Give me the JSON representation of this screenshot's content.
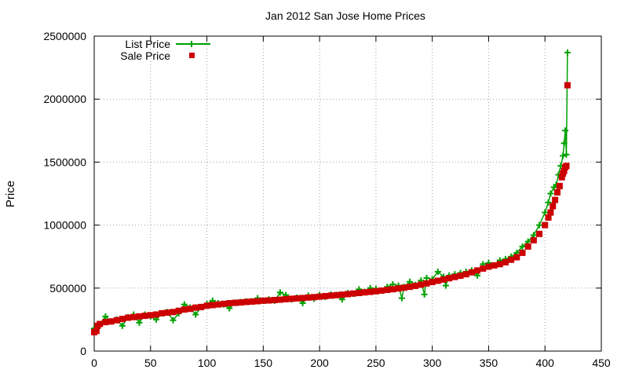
{
  "chart_data": {
    "type": "scatter",
    "title": "Jan 2012 San Jose Home Prices",
    "xlabel": "",
    "ylabel": "Price",
    "xlim": [
      0,
      450
    ],
    "ylim": [
      0,
      2500000
    ],
    "x_ticks": [
      0,
      50,
      100,
      150,
      200,
      250,
      300,
      350,
      400,
      450
    ],
    "y_ticks": [
      0,
      500000,
      1000000,
      1500000,
      2000000,
      2500000
    ],
    "grid": true,
    "legend_position": "top-left",
    "series": [
      {
        "name": "List Price",
        "style": "line-with-plus-markers",
        "color": "#00a000",
        "points": [
          [
            0,
            180000
          ],
          [
            2,
            195000
          ],
          [
            5,
            215000
          ],
          [
            10,
            275000
          ],
          [
            15,
            235000
          ],
          [
            20,
            250000
          ],
          [
            25,
            200000
          ],
          [
            30,
            270000
          ],
          [
            35,
            290000
          ],
          [
            40,
            225000
          ],
          [
            45,
            290000
          ],
          [
            50,
            275000
          ],
          [
            55,
            250000
          ],
          [
            60,
            300000
          ],
          [
            65,
            310000
          ],
          [
            70,
            245000
          ],
          [
            75,
            300000
          ],
          [
            80,
            370000
          ],
          [
            85,
            345000
          ],
          [
            90,
            290000
          ],
          [
            95,
            350000
          ],
          [
            100,
            375000
          ],
          [
            105,
            400000
          ],
          [
            110,
            380000
          ],
          [
            115,
            370000
          ],
          [
            120,
            340000
          ],
          [
            125,
            385000
          ],
          [
            130,
            390000
          ],
          [
            135,
            395000
          ],
          [
            140,
            395000
          ],
          [
            145,
            420000
          ],
          [
            150,
            400000
          ],
          [
            155,
            410000
          ],
          [
            160,
            400000
          ],
          [
            165,
            465000
          ],
          [
            170,
            445000
          ],
          [
            175,
            410000
          ],
          [
            180,
            425000
          ],
          [
            185,
            380000
          ],
          [
            190,
            440000
          ],
          [
            195,
            415000
          ],
          [
            200,
            445000
          ],
          [
            205,
            430000
          ],
          [
            210,
            450000
          ],
          [
            215,
            445000
          ],
          [
            220,
            410000
          ],
          [
            225,
            460000
          ],
          [
            230,
            455000
          ],
          [
            235,
            490000
          ],
          [
            240,
            470000
          ],
          [
            245,
            500000
          ],
          [
            250,
            495000
          ],
          [
            255,
            480000
          ],
          [
            260,
            510000
          ],
          [
            265,
            530000
          ],
          [
            270,
            520000
          ],
          [
            273,
            420000
          ],
          [
            275,
            510000
          ],
          [
            280,
            550000
          ],
          [
            285,
            525000
          ],
          [
            290,
            560000
          ],
          [
            293,
            450000
          ],
          [
            295,
            580000
          ],
          [
            300,
            570000
          ],
          [
            305,
            630000
          ],
          [
            310,
            590000
          ],
          [
            312,
            520000
          ],
          [
            315,
            600000
          ],
          [
            320,
            610000
          ],
          [
            325,
            620000
          ],
          [
            330,
            630000
          ],
          [
            335,
            640000
          ],
          [
            340,
            600000
          ],
          [
            345,
            690000
          ],
          [
            350,
            700000
          ],
          [
            355,
            680000
          ],
          [
            360,
            720000
          ],
          [
            365,
            730000
          ],
          [
            370,
            750000
          ],
          [
            375,
            780000
          ],
          [
            380,
            830000
          ],
          [
            385,
            870000
          ],
          [
            390,
            920000
          ],
          [
            395,
            1000000
          ],
          [
            400,
            1100000
          ],
          [
            403,
            1180000
          ],
          [
            405,
            1250000
          ],
          [
            408,
            1300000
          ],
          [
            410,
            1320000
          ],
          [
            412,
            1400000
          ],
          [
            414,
            1470000
          ],
          [
            416,
            1550000
          ],
          [
            417,
            1650000
          ],
          [
            418,
            1750000
          ],
          [
            419,
            1560000
          ],
          [
            420,
            2370000
          ]
        ]
      },
      {
        "name": "Sale Price",
        "style": "square-markers",
        "color": "#cc0000",
        "points": [
          [
            0,
            150000
          ],
          [
            2,
            160000
          ],
          [
            3,
            200000
          ],
          [
            5,
            215000
          ],
          [
            10,
            230000
          ],
          [
            15,
            235000
          ],
          [
            20,
            245000
          ],
          [
            25,
            255000
          ],
          [
            30,
            265000
          ],
          [
            35,
            270000
          ],
          [
            40,
            275000
          ],
          [
            45,
            280000
          ],
          [
            50,
            285000
          ],
          [
            55,
            290000
          ],
          [
            60,
            300000
          ],
          [
            65,
            305000
          ],
          [
            70,
            310000
          ],
          [
            75,
            320000
          ],
          [
            80,
            330000
          ],
          [
            85,
            335000
          ],
          [
            90,
            345000
          ],
          [
            95,
            350000
          ],
          [
            100,
            360000
          ],
          [
            105,
            365000
          ],
          [
            110,
            370000
          ],
          [
            115,
            375000
          ],
          [
            120,
            380000
          ],
          [
            125,
            383000
          ],
          [
            130,
            386000
          ],
          [
            135,
            390000
          ],
          [
            140,
            393000
          ],
          [
            145,
            396000
          ],
          [
            150,
            400000
          ],
          [
            155,
            402000
          ],
          [
            160,
            405000
          ],
          [
            165,
            408000
          ],
          [
            170,
            412000
          ],
          [
            175,
            415000
          ],
          [
            180,
            418000
          ],
          [
            185,
            421000
          ],
          [
            190,
            425000
          ],
          [
            195,
            428000
          ],
          [
            200,
            432000
          ],
          [
            205,
            436000
          ],
          [
            210,
            440000
          ],
          [
            215,
            444000
          ],
          [
            220,
            448000
          ],
          [
            225,
            452000
          ],
          [
            230,
            457000
          ],
          [
            235,
            461000
          ],
          [
            240,
            466000
          ],
          [
            245,
            470000
          ],
          [
            250,
            475000
          ],
          [
            255,
            480000
          ],
          [
            260,
            486000
          ],
          [
            265,
            491000
          ],
          [
            270,
            497000
          ],
          [
            275,
            503000
          ],
          [
            280,
            510000
          ],
          [
            285,
            518000
          ],
          [
            290,
            527000
          ],
          [
            295,
            537000
          ],
          [
            300,
            548000
          ],
          [
            305,
            558000
          ],
          [
            310,
            568000
          ],
          [
            315,
            578000
          ],
          [
            320,
            588000
          ],
          [
            325,
            598000
          ],
          [
            330,
            610000
          ],
          [
            335,
            625000
          ],
          [
            340,
            640000
          ],
          [
            345,
            655000
          ],
          [
            350,
            670000
          ],
          [
            355,
            680000
          ],
          [
            360,
            690000
          ],
          [
            365,
            705000
          ],
          [
            370,
            725000
          ],
          [
            375,
            745000
          ],
          [
            380,
            780000
          ],
          [
            385,
            830000
          ],
          [
            390,
            880000
          ],
          [
            395,
            930000
          ],
          [
            400,
            1000000
          ],
          [
            403,
            1060000
          ],
          [
            405,
            1100000
          ],
          [
            407,
            1150000
          ],
          [
            409,
            1200000
          ],
          [
            411,
            1260000
          ],
          [
            413,
            1310000
          ],
          [
            415,
            1380000
          ],
          [
            416,
            1410000
          ],
          [
            417,
            1430000
          ],
          [
            418,
            1460000
          ],
          [
            419,
            1470000
          ],
          [
            420,
            2110000
          ]
        ]
      }
    ]
  }
}
